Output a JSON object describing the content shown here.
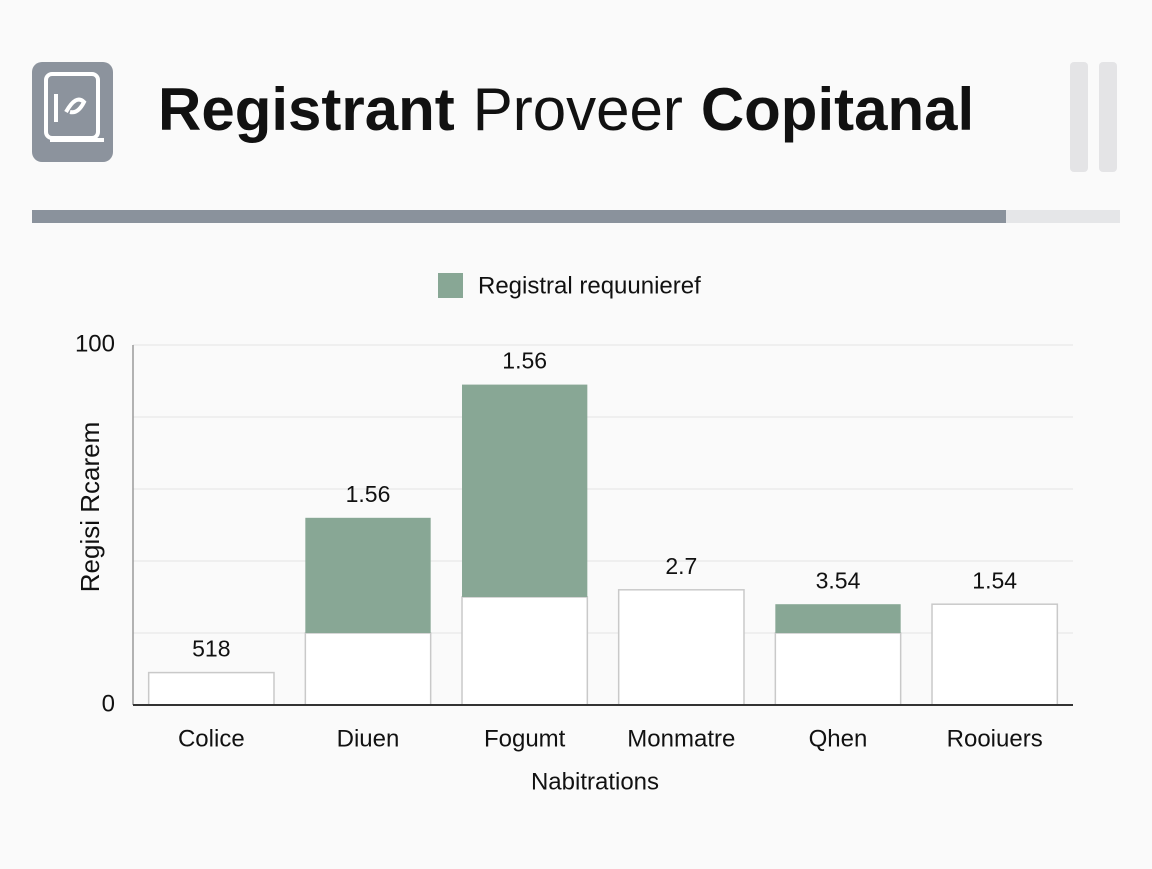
{
  "header": {
    "title_parts": [
      {
        "text": "Registrant",
        "bold": true
      },
      {
        "text": "Proveer",
        "bold": false
      },
      {
        "text": "Copitanal",
        "bold": true
      }
    ]
  },
  "chart_data": {
    "type": "stacked_bar",
    "categories": [
      "Colice",
      "Diuen",
      "Fogumt",
      "Monmatre",
      "Qhen",
      "Rooiuers"
    ],
    "series": [
      {
        "name": null,
        "color": "#ffffff",
        "values": [
          9,
          20,
          30,
          32,
          20,
          28
        ]
      },
      {
        "name": "Registral requunieref",
        "color": "#88a795",
        "values": [
          null,
          32,
          59,
          null,
          8,
          null
        ]
      }
    ],
    "bar_labels": [
      "518",
      "1.56",
      "1.56",
      "2.7",
      "3.54",
      "1.54"
    ],
    "ylim": [
      0,
      100
    ],
    "yticks": [
      0,
      100
    ],
    "minor_yticks": [
      20,
      40,
      60,
      80
    ],
    "grid": true,
    "ylabel": "Regisi Rcarem",
    "xlabel": "Nabitrations"
  }
}
